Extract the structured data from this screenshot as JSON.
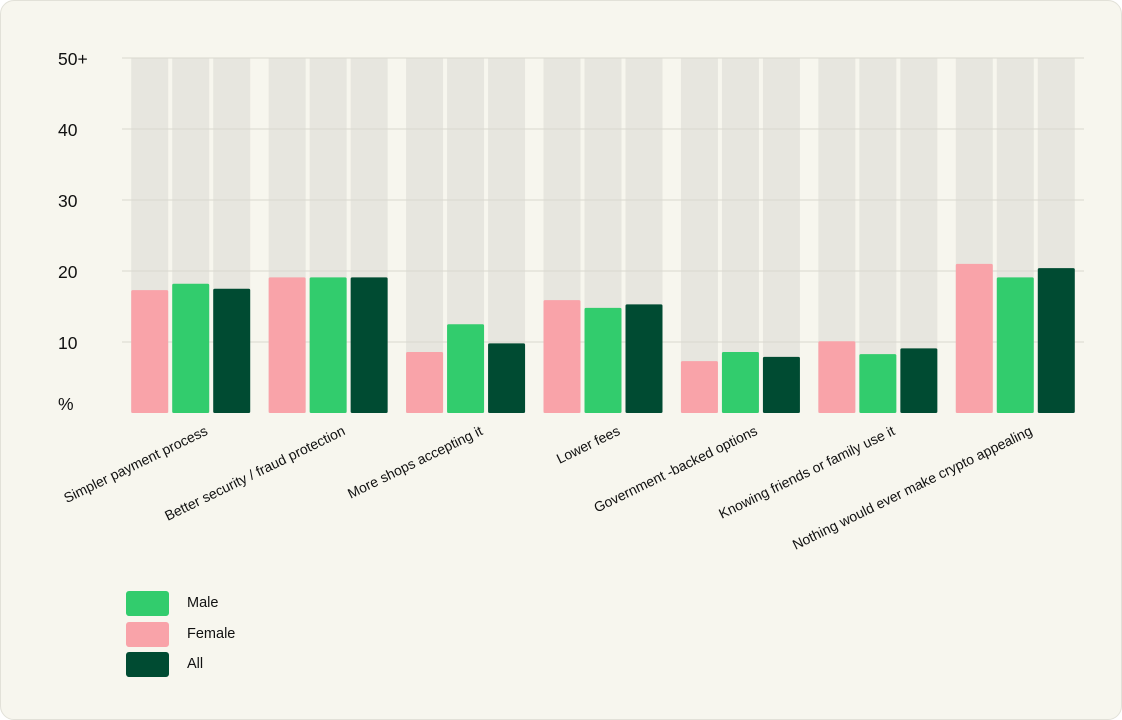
{
  "chart_data": {
    "type": "bar",
    "categories": [
      "Simpler payment process",
      "Better security / fraud protection",
      "More shops accepting it",
      "Lower fees",
      "Government -backed options",
      "Knowing friends or family use it",
      "Nothing would ever make crypto appealing"
    ],
    "series": [
      {
        "name": "Female",
        "color": "#f9a3a9",
        "values": [
          17.3,
          19.1,
          8.6,
          15.9,
          7.3,
          10.1,
          21.0
        ]
      },
      {
        "name": "Male",
        "color": "#32cc6d",
        "values": [
          18.2,
          19.1,
          12.5,
          14.8,
          8.6,
          8.3,
          19.1
        ]
      },
      {
        "name": "All",
        "color": "#004b32",
        "values": [
          17.5,
          19.1,
          9.8,
          15.3,
          7.9,
          9.1,
          20.4
        ]
      }
    ],
    "y_ticks": [
      "%",
      "10",
      "20",
      "30",
      "40",
      "50+"
    ],
    "ylim": [
      0,
      50
    ],
    "background_bar_color": "#e7e6df",
    "gridlines": true,
    "legend_position": "bottom-left"
  },
  "legend": [
    {
      "label": "Male",
      "color": "#32cc6d"
    },
    {
      "label": "Female",
      "color": "#f9a3a9"
    },
    {
      "label": "All",
      "color": "#004b32"
    }
  ]
}
